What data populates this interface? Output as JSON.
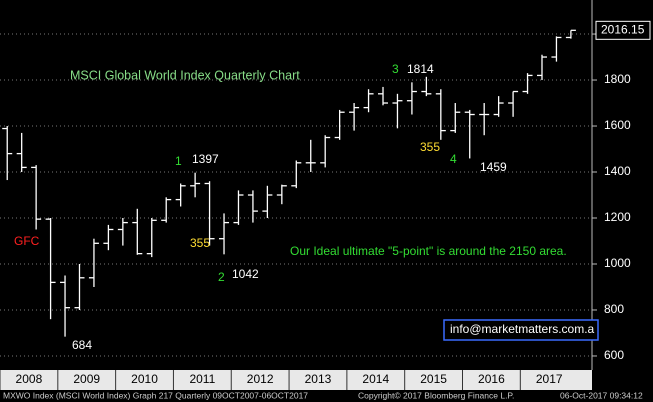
{
  "chart_data": {
    "type": "ohlc",
    "title": "MSCI Global World Index Quarterly Chart",
    "x": [
      2008.125,
      2008.375,
      2008.625,
      2008.875,
      2009.125,
      2009.375,
      2009.625,
      2009.875,
      2010.125,
      2010.375,
      2010.625,
      2010.875,
      2011.125,
      2011.375,
      2011.625,
      2011.875,
      2012.125,
      2012.375,
      2012.625,
      2012.875,
      2013.125,
      2013.375,
      2013.625,
      2013.875,
      2014.125,
      2014.375,
      2014.625,
      2014.875,
      2015.125,
      2015.375,
      2015.625,
      2015.875,
      2016.125,
      2016.375,
      2016.625,
      2016.875,
      2017.125,
      2017.375,
      2017.625,
      2017.875
    ],
    "open": [
      1589,
      1480,
      1420,
      1195,
      920,
      810,
      940,
      1090,
      1150,
      1180,
      1045,
      1190,
      1280,
      1340,
      1350,
      1110,
      1180,
      1300,
      1230,
      1300,
      1340,
      1440,
      1440,
      1550,
      1660,
      1680,
      1740,
      1700,
      1710,
      1750,
      1740,
      1580,
      1660,
      1650,
      1650,
      1700,
      1750,
      1820,
      1900,
      1985
    ],
    "high": [
      1600,
      1570,
      1430,
      1200,
      950,
      1000,
      1110,
      1170,
      1200,
      1240,
      1200,
      1290,
      1350,
      1397,
      1360,
      1220,
      1320,
      1320,
      1340,
      1345,
      1450,
      1540,
      1560,
      1670,
      1700,
      1760,
      1770,
      1740,
      1790,
      1814,
      1760,
      1700,
      1670,
      1700,
      1730,
      1750,
      1830,
      1910,
      1990,
      2016.15
    ],
    "low": [
      1365,
      1400,
      1150,
      760,
      684,
      800,
      900,
      1060,
      1080,
      1040,
      1030,
      1180,
      1250,
      1290,
      1080,
      1042,
      1170,
      1180,
      1200,
      1260,
      1330,
      1400,
      1420,
      1540,
      1580,
      1660,
      1690,
      1590,
      1650,
      1730,
      1540,
      1570,
      1459,
      1560,
      1640,
      1640,
      1740,
      1800,
      1880,
      1980
    ],
    "close": [
      1480,
      1420,
      1195,
      920,
      810,
      940,
      1090,
      1150,
      1180,
      1045,
      1190,
      1280,
      1340,
      1350,
      1110,
      1180,
      1300,
      1230,
      1300,
      1340,
      1440,
      1440,
      1550,
      1660,
      1680,
      1740,
      1700,
      1710,
      1750,
      1740,
      1580,
      1660,
      1650,
      1650,
      1700,
      1750,
      1820,
      1900,
      1985,
      2016.15
    ],
    "color": "#ffffff",
    "xlim": [
      2008,
      2018.24
    ],
    "xticks": [
      2008,
      2009,
      2010,
      2011,
      2012,
      2013,
      2014,
      2015,
      2016,
      2017
    ],
    "ylim": [
      539,
      2148
    ],
    "yticks": [
      600,
      800,
      1000,
      1200,
      1400,
      1600,
      1800,
      2000
    ],
    "grid": true,
    "annotations": [
      {
        "text": "GFC",
        "color": "#ff2020"
      },
      {
        "text": "684",
        "color": "#ffffff"
      },
      {
        "text": "1",
        "color": "#33dd33"
      },
      {
        "text": "1397",
        "color": "#ffffff"
      },
      {
        "text": "355",
        "color": "#ffdd33"
      },
      {
        "text": "2",
        "color": "#33dd33"
      },
      {
        "text": "1042",
        "color": "#ffffff"
      },
      {
        "text": "3",
        "color": "#33dd33"
      },
      {
        "text": "1814",
        "color": "#ffffff"
      },
      {
        "text": "355",
        "color": "#ffdd33"
      },
      {
        "text": "4",
        "color": "#33dd33"
      },
      {
        "text": "1459",
        "color": "#ffffff"
      },
      {
        "text": "Our Ideal ultimate \"5-point\" is around the 2150 area.",
        "color": "#33dd33"
      }
    ],
    "title_color": "#88dd88",
    "contact": "info@marketmatters.com.a",
    "footer": [
      "MXWO Index (MSCI World Index) Graph 217 Quarterly 09OCT2007-06OCT2017",
      "Copyright© 2017 Bloomberg Finance L.P.",
      "06-Oct-2017 09:34:12"
    ]
  }
}
